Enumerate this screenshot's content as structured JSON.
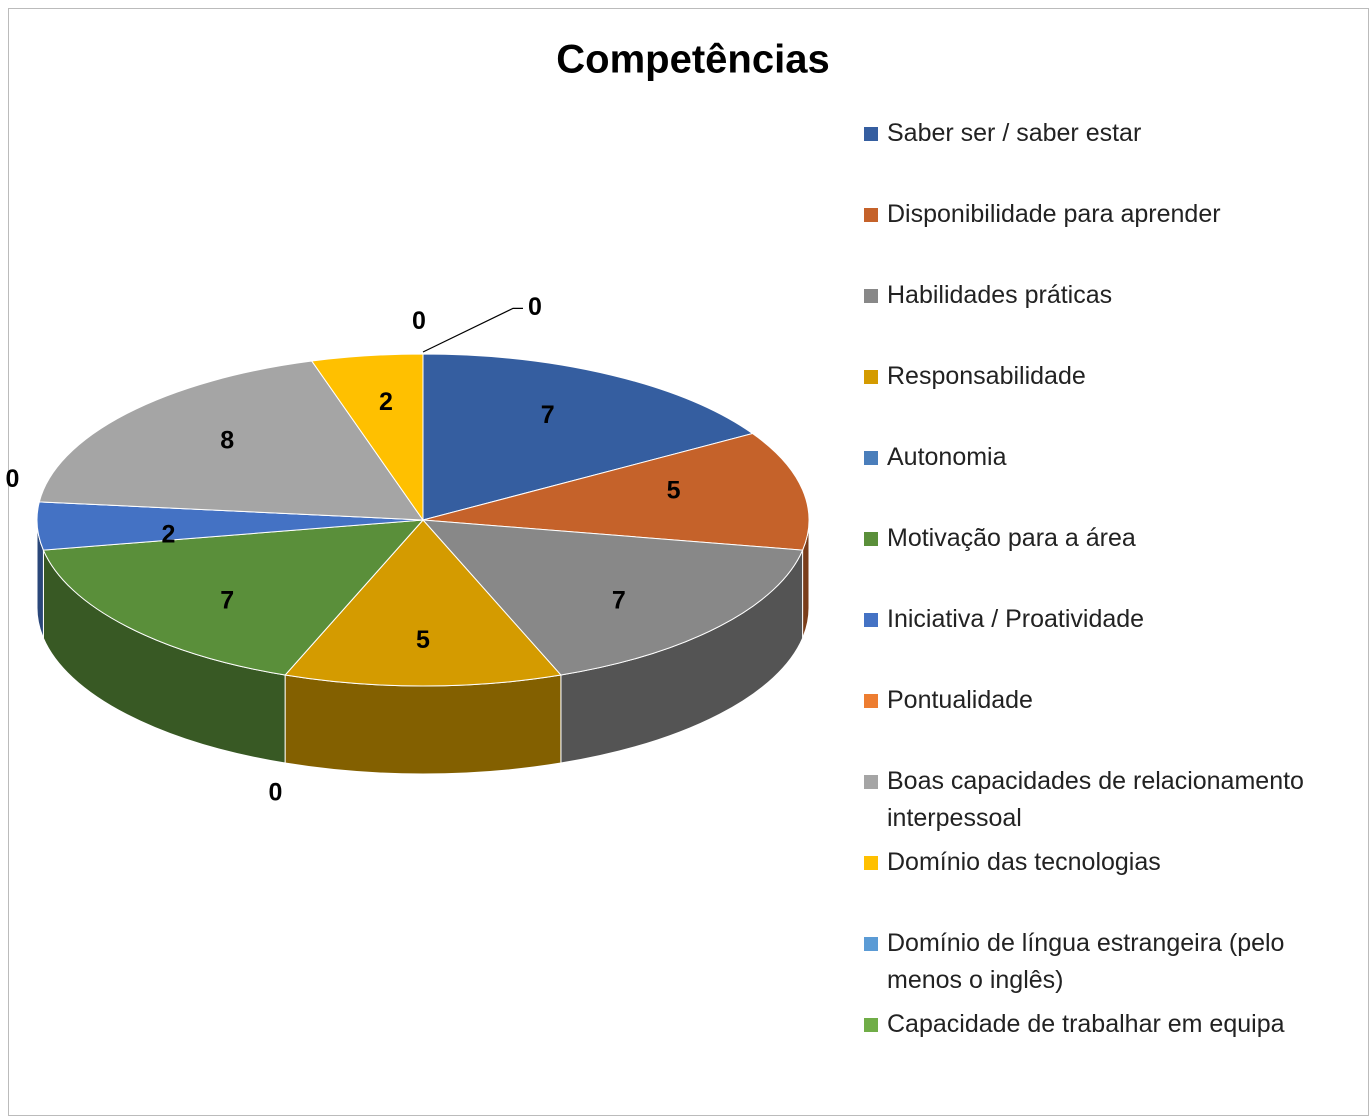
{
  "chart_data": {
    "type": "pie3d",
    "title": "Competências",
    "categories": [
      "Saber ser / saber estar",
      "Disponibilidade para aprender",
      "Habilidades práticas",
      "Responsabilidade",
      "Autonomia",
      "Motivação para a área",
      "Iniciativa / Proatividade",
      "Pontualidade",
      "Boas capacidades de relacionamento interpessoal",
      "Domínio das tecnologias",
      "Domínio de língua estrangeira (pelo menos o inglês)",
      "Capacidade de trabalhar em equipa"
    ],
    "values": [
      7,
      5,
      7,
      5,
      0,
      7,
      2,
      0,
      8,
      2,
      0,
      0
    ],
    "colors": [
      "#355ea0",
      "#c5622a",
      "#888888",
      "#d49b00",
      "#4a7ebb",
      "#5a8f3a",
      "#4472c4",
      "#ed7d31",
      "#a5a5a5",
      "#ffc000",
      "#5b9bd5",
      "#70ad47"
    ],
    "legend": "right"
  }
}
